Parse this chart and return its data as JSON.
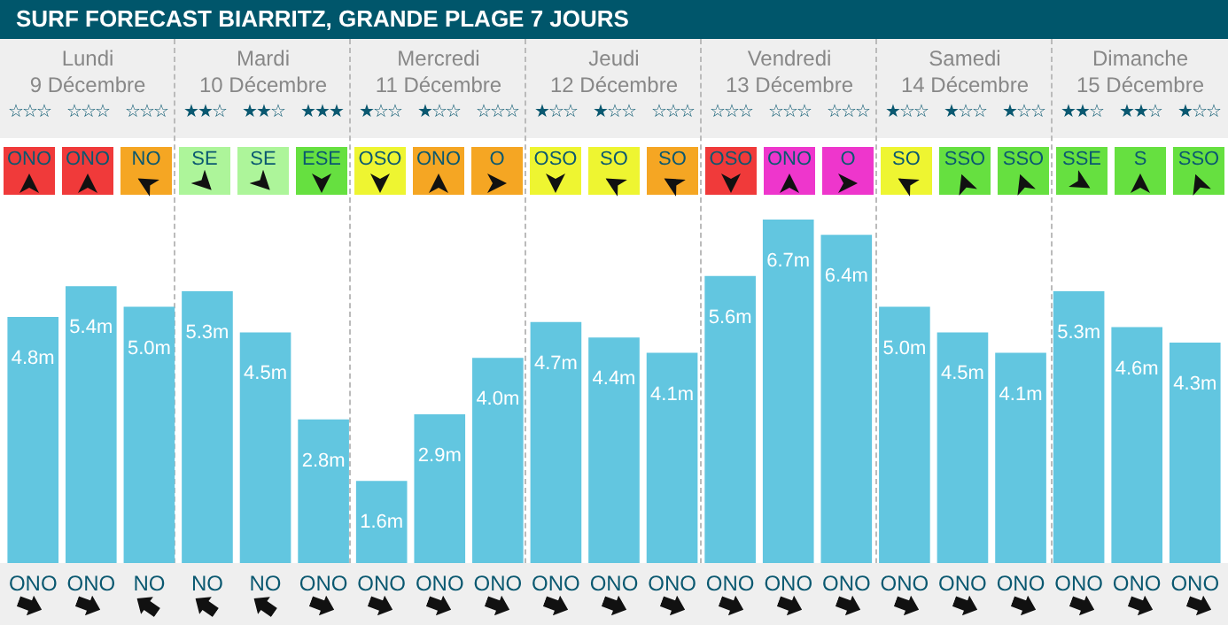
{
  "chart_data": {
    "type": "bar",
    "title": "SURF FORECAST BIARRITZ, GRANDE PLAGE 7 JOURS",
    "categories": [
      "ONO",
      "ONO",
      "NO",
      "NO",
      "NO",
      "ONO",
      "ONO",
      "ONO",
      "ONO",
      "ONO",
      "ONO",
      "ONO",
      "ONO",
      "ONO",
      "ONO",
      "ONO",
      "ONO",
      "ONO",
      "ONO",
      "ONO",
      "ONO"
    ],
    "values": [
      4.8,
      5.4,
      5.0,
      5.3,
      4.5,
      2.8,
      1.6,
      2.9,
      4.0,
      4.7,
      4.4,
      4.1,
      5.6,
      6.7,
      6.4,
      5.0,
      4.5,
      4.1,
      5.3,
      4.6,
      4.3
    ],
    "value_labels": [
      "4.8m",
      "5.4m",
      "5.0m",
      "5.3m",
      "4.5m",
      "2.8m",
      "1.6m",
      "2.9m",
      "4.0m",
      "4.7m",
      "4.4m",
      "4.1m",
      "5.6m",
      "6.7m",
      "6.4m",
      "5.0m",
      "4.5m",
      "4.1m",
      "5.3m",
      "4.6m",
      "4.3m"
    ],
    "color": "#62c6e0",
    "ylim": [
      0,
      6.7
    ],
    "tick_labels": "x",
    "grid": false,
    "legend": false,
    "annotations": [
      "Lundi",
      "Mardi",
      "Mercredi",
      "Jeudi",
      "Vendredi",
      "Samedi",
      "Dimanche",
      "9 Décembre",
      "10 Décembre",
      "11 Décembre",
      "12 Décembre",
      "13 Décembre",
      "14 Décembre",
      "15 Décembre",
      "☆☆☆",
      "☆☆☆",
      "☆☆☆",
      "★★☆",
      "★★☆",
      "★★★",
      "★☆☆",
      "★☆☆",
      "☆☆☆",
      "★☆☆",
      "★☆☆",
      "☆☆☆",
      "☆☆☆",
      "☆☆☆",
      "☆☆☆",
      "★☆☆",
      "★☆☆",
      "★☆☆",
      "★★☆",
      "★★☆",
      "★☆☆",
      "ONO",
      "ONO",
      "NO",
      "SE",
      "SE",
      "ESE",
      "OSO",
      "ONO",
      "O",
      "OSO",
      "SO",
      "SO",
      "OSO",
      "ONO",
      "O",
      "SO",
      "SSO",
      "SSO",
      "SSE",
      "S",
      "SSO"
    ]
  }
}
